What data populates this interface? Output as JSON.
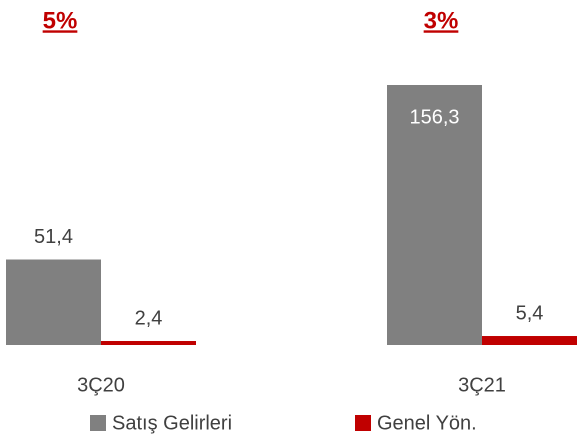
{
  "chart_data": {
    "type": "bar",
    "annotations": [
      "5%",
      "3%"
    ],
    "categories": [
      "3Ç20",
      "3Ç21"
    ],
    "series": [
      {
        "name": "Satış Gelirleri",
        "color": "#808080",
        "values": [
          51.4,
          156.3
        ],
        "value_labels": [
          "51,4",
          "156,3"
        ]
      },
      {
        "name": "Genel Yön.",
        "color": "#c00000",
        "values": [
          2.4,
          5.4
        ],
        "value_labels": [
          "2,4",
          "5,4"
        ]
      }
    ]
  }
}
